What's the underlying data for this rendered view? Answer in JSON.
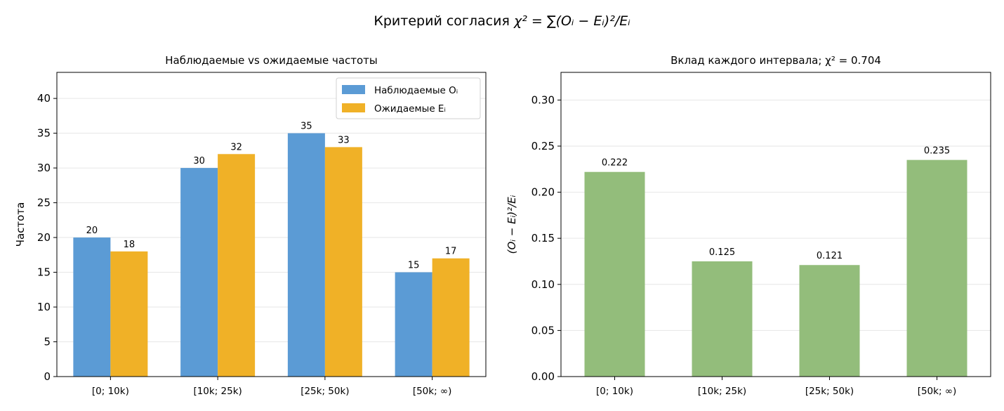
{
  "figure": {
    "suptitle_prefix": "Критерий согласия",
    "suptitle_formula": "χ² = ∑(Oᵢ − Eᵢ)²/Eᵢ"
  },
  "colors": {
    "observed": "#5B9BD5",
    "expected": "#F0B127",
    "contribution": "#93BD7B",
    "grid": "#e6e6e6",
    "axis": "#000000"
  },
  "chart_data": [
    {
      "type": "bar",
      "title": "Наблюдаемые vs ожидаемые частоты",
      "xlabel": "",
      "ylabel": "Частота",
      "categories": [
        "[0; 10k)",
        "[10k; 25k)",
        "[25k; 50k)",
        "[50k; ∞)"
      ],
      "series": [
        {
          "name": "Наблюдаемые Oᵢ",
          "values": [
            20,
            30,
            35,
            15
          ]
        },
        {
          "name": "Ожидаемые Eᵢ",
          "values": [
            18,
            32,
            33,
            17
          ]
        }
      ],
      "ylim": [
        0,
        43.75
      ],
      "yticks": [
        "0",
        "5",
        "10",
        "15",
        "20",
        "25",
        "30",
        "35",
        "40"
      ],
      "grid": "horizontal",
      "legend": "top-right",
      "data_labels": [
        "20",
        "18",
        "30",
        "32",
        "35",
        "33",
        "15",
        "17"
      ]
    },
    {
      "type": "bar",
      "title": "Вклад каждого интервала; χ² = 0.704",
      "xlabel": "",
      "ylabel": "(Oᵢ − Eᵢ)²/Eᵢ",
      "categories": [
        "[0; 10k)",
        "[10k; 25k)",
        "[25k; 50k)",
        "[50k; ∞)"
      ],
      "values": [
        0.222,
        0.125,
        0.121,
        0.235
      ],
      "ylim": [
        0,
        0.33
      ],
      "yticks": [
        "0.00",
        "0.05",
        "0.10",
        "0.15",
        "0.20",
        "0.25",
        "0.30"
      ],
      "grid": "horizontal",
      "data_labels": [
        "0.222",
        "0.125",
        "0.121",
        "0.235"
      ]
    }
  ]
}
